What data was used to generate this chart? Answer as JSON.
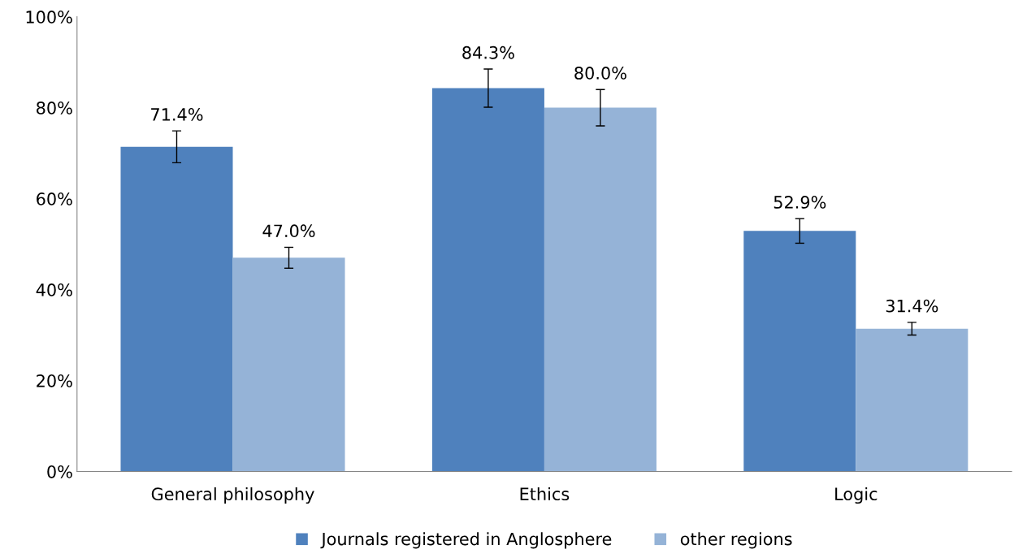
{
  "chart_data": {
    "type": "bar",
    "categories": [
      "General philosophy",
      "Ethics",
      "Logic"
    ],
    "series": [
      {
        "name": "Journals registered in Anglosphere",
        "color": "#4f81bd",
        "values": [
          71.4,
          84.3,
          52.9
        ],
        "errors": [
          3.5,
          4.2,
          2.7
        ],
        "value_labels": [
          "71.4%",
          "84.3%",
          "52.9%"
        ]
      },
      {
        "name": "other regions",
        "color": "#95b3d7",
        "values": [
          47.0,
          80.0,
          31.4
        ],
        "errors": [
          2.3,
          4.0,
          1.4
        ],
        "value_labels": [
          "47.0%",
          "80.0%",
          "31.4%"
        ]
      }
    ],
    "ylim": [
      0,
      100
    ],
    "yticks": [
      {
        "value": 0,
        "label": "0%"
      },
      {
        "value": 20,
        "label": "20%"
      },
      {
        "value": 40,
        "label": "40%"
      },
      {
        "value": 60,
        "label": "60%"
      },
      {
        "value": 80,
        "label": "80%"
      },
      {
        "value": 100,
        "label": "100%"
      }
    ],
    "grid": false,
    "legend": "bottom"
  }
}
